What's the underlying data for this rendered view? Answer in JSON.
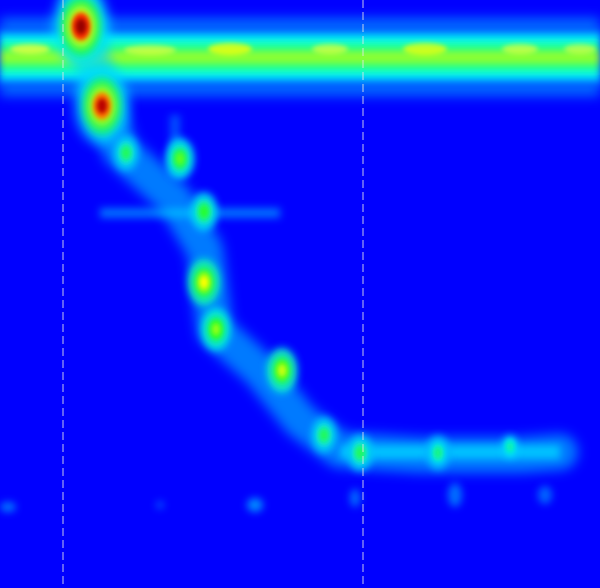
{
  "chart_data": {
    "type": "heatmap",
    "title": "",
    "xlabel": "",
    "ylabel": "",
    "colormap": "jet",
    "grid": false,
    "legend": "none",
    "palette": {
      "background": "#0000ff",
      "cyan": "#00ffff",
      "green": "#00ff00",
      "yellow": "#ffff00",
      "red": "#ff0000",
      "darkred": "#8b0000",
      "marker_line": "#e6e6e6"
    },
    "horizontal_band": {
      "position": 0.085,
      "intensity": 0.7
    },
    "vertical_markers": [
      0.105,
      0.605
    ],
    "hotspots": [
      {
        "x": 0.135,
        "y": 0.045,
        "intensity": 1.0
      },
      {
        "x": 0.17,
        "y": 0.18,
        "intensity": 0.95
      },
      {
        "x": 0.21,
        "y": 0.26,
        "intensity": 0.45
      },
      {
        "x": 0.3,
        "y": 0.27,
        "intensity": 0.55
      },
      {
        "x": 0.34,
        "y": 0.36,
        "intensity": 0.5
      },
      {
        "x": 0.34,
        "y": 0.48,
        "intensity": 0.7
      },
      {
        "x": 0.36,
        "y": 0.56,
        "intensity": 0.6
      },
      {
        "x": 0.47,
        "y": 0.63,
        "intensity": 0.65
      },
      {
        "x": 0.54,
        "y": 0.74,
        "intensity": 0.45
      },
      {
        "x": 0.6,
        "y": 0.77,
        "intensity": 0.45
      },
      {
        "x": 0.73,
        "y": 0.77,
        "intensity": 0.4
      },
      {
        "x": 0.85,
        "y": 0.76,
        "intensity": 0.35
      }
    ]
  }
}
